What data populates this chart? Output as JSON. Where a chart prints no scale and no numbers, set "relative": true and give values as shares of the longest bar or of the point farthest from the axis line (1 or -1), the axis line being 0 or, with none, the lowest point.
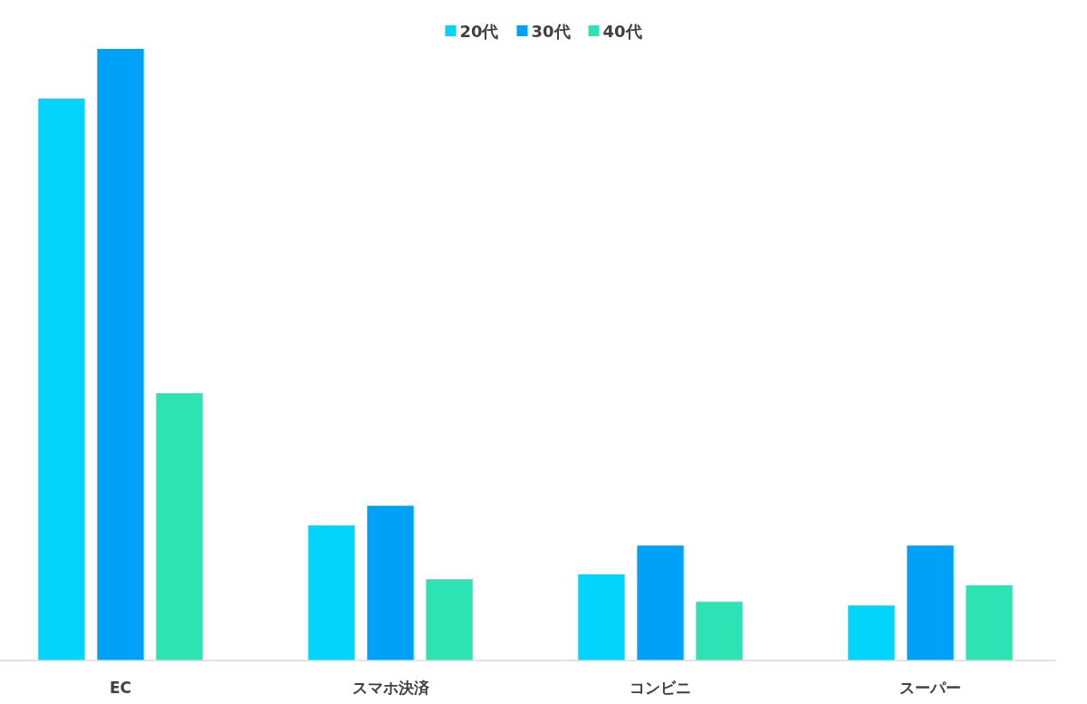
{
  "chart_data": {
    "type": "bar",
    "relative": true,
    "legend": "top",
    "categories": [
      "EC",
      "スマホ決済",
      "コンビニ",
      "スーパー"
    ],
    "series": [
      {
        "name": "20代",
        "color": "#03d4fc",
        "values": [
          0.919,
          0.221,
          0.141,
          0.09
        ]
      },
      {
        "name": "30代",
        "color": "#00a1f9",
        "values": [
          1,
          0.253,
          0.188,
          0.188
        ]
      },
      {
        "name": "40代",
        "color": "#2ee3b3",
        "values": [
          0.437,
          0.133,
          0.096,
          0.123
        ]
      }
    ]
  }
}
